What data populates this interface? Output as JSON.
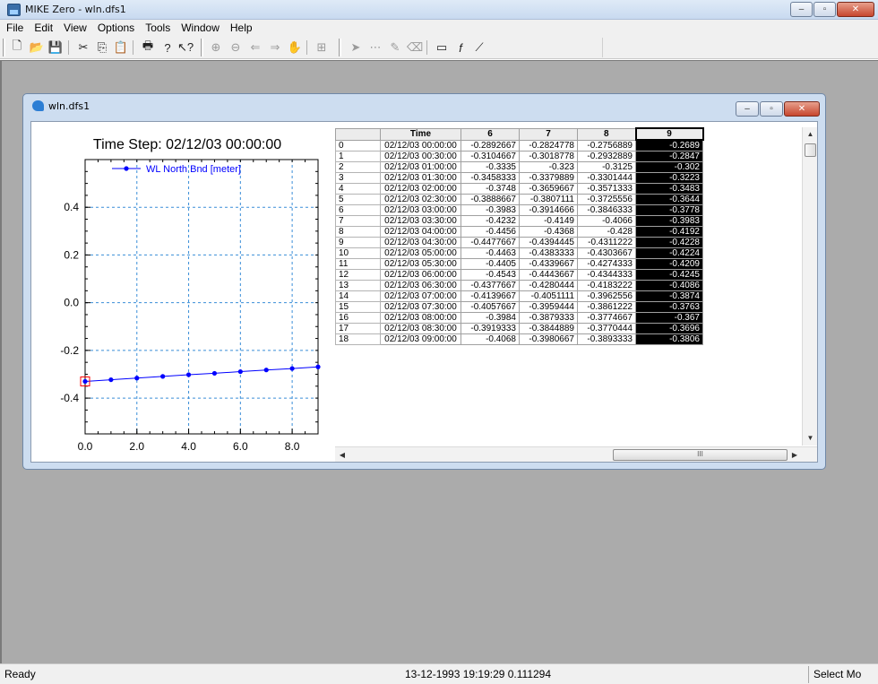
{
  "window": {
    "title": "MIKE Zero - wln.dfs1",
    "minimize": "–",
    "maximize": "▫",
    "close": "✕"
  },
  "menu": [
    "File",
    "Edit",
    "View",
    "Options",
    "Tools",
    "Window",
    "Help"
  ],
  "toolbar": {
    "icons": [
      "new-file-icon",
      "open-folder-icon",
      "save-icon",
      "cut-icon",
      "copy-icon",
      "paste-icon",
      "print-icon",
      "about-icon",
      "context-help-icon",
      "zoom-in-icon",
      "zoom-out-icon",
      "previous-view-icon",
      "next-view-icon",
      "pan-icon",
      "grid-icon",
      "select-pointer-icon",
      "edit-points-icon",
      "draw-icon",
      "erase-icon",
      "rectangle-icon",
      "function-icon",
      "line-icon"
    ]
  },
  "child": {
    "title": "wln.dfs1",
    "minimize": "–",
    "maximize": "▫",
    "close": "✕"
  },
  "chart_data": {
    "type": "line",
    "title": "Time Step: 02/12/03 00:00:00",
    "xlabel": "",
    "ylabel": "",
    "xlim": [
      0.0,
      9.0
    ],
    "ylim": [
      -0.55,
      0.6
    ],
    "xticks": [
      "0.0",
      "2.0",
      "4.0",
      "6.0",
      "8.0"
    ],
    "yticks": [
      "0.4",
      "0.2",
      "0.0",
      "-0.2",
      "-0.4"
    ],
    "xtick_values": [
      0,
      2,
      4,
      6,
      8
    ],
    "ytick_values": [
      0.4,
      0.2,
      0.0,
      -0.2,
      -0.4
    ],
    "grid": true,
    "legend": "top-left",
    "series": [
      {
        "name": "WL North Bnd [meter]",
        "color": "#0000ff",
        "x": [
          0,
          1,
          2,
          3,
          4,
          5,
          6,
          7,
          8,
          9
        ],
        "values": [
          -0.33,
          -0.323,
          -0.316,
          -0.309,
          -0.302,
          -0.296,
          -0.289,
          -0.282,
          -0.276,
          -0.269
        ]
      }
    ],
    "highlight_point_index": 0,
    "highlight_color": "#ff0000"
  },
  "grid": {
    "headers": [
      "",
      "Time",
      "6",
      "7",
      "8",
      "9"
    ],
    "rows": [
      [
        "0",
        "02/12/03 00:00:00",
        "-0.2892667",
        "-0.2824778",
        "-0.2756889",
        "-0.2689"
      ],
      [
        "1",
        "02/12/03 00:30:00",
        "-0.3104667",
        "-0.3018778",
        "-0.2932889",
        "-0.2847"
      ],
      [
        "2",
        "02/12/03 01:00:00",
        "-0.3335",
        "-0.323",
        "-0.3125",
        "-0.302"
      ],
      [
        "3",
        "02/12/03 01:30:00",
        "-0.3458333",
        "-0.3379889",
        "-0.3301444",
        "-0.3223"
      ],
      [
        "4",
        "02/12/03 02:00:00",
        "-0.3748",
        "-0.3659667",
        "-0.3571333",
        "-0.3483"
      ],
      [
        "5",
        "02/12/03 02:30:00",
        "-0.3888667",
        "-0.3807111",
        "-0.3725556",
        "-0.3644"
      ],
      [
        "6",
        "02/12/03 03:00:00",
        "-0.3983",
        "-0.3914666",
        "-0.3846333",
        "-0.3778"
      ],
      [
        "7",
        "02/12/03 03:30:00",
        "-0.4232",
        "-0.4149",
        "-0.4066",
        "-0.3983"
      ],
      [
        "8",
        "02/12/03 04:00:00",
        "-0.4456",
        "-0.4368",
        "-0.428",
        "-0.4192"
      ],
      [
        "9",
        "02/12/03 04:30:00",
        "-0.4477667",
        "-0.4394445",
        "-0.4311222",
        "-0.4228"
      ],
      [
        "10",
        "02/12/03 05:00:00",
        "-0.4463",
        "-0.4383333",
        "-0.4303667",
        "-0.4224"
      ],
      [
        "11",
        "02/12/03 05:30:00",
        "-0.4405",
        "-0.4339667",
        "-0.4274333",
        "-0.4209"
      ],
      [
        "12",
        "02/12/03 06:00:00",
        "-0.4543",
        "-0.4443667",
        "-0.4344333",
        "-0.4245"
      ],
      [
        "13",
        "02/12/03 06:30:00",
        "-0.4377667",
        "-0.4280444",
        "-0.4183222",
        "-0.4086"
      ],
      [
        "14",
        "02/12/03 07:00:00",
        "-0.4139667",
        "-0.4051111",
        "-0.3962556",
        "-0.3874"
      ],
      [
        "15",
        "02/12/03 07:30:00",
        "-0.4057667",
        "-0.3959444",
        "-0.3861222",
        "-0.3763"
      ],
      [
        "16",
        "02/12/03 08:00:00",
        "-0.3984",
        "-0.3879333",
        "-0.3774667",
        "-0.367"
      ],
      [
        "17",
        "02/12/03 08:30:00",
        "-0.3919333",
        "-0.3844889",
        "-0.3770444",
        "-0.3696"
      ],
      [
        "18",
        "02/12/03 09:00:00",
        "-0.4068",
        "-0.3980667",
        "-0.3893333",
        "-0.3806"
      ]
    ],
    "scroll_arrows": {
      "up": "▲",
      "down": "▼",
      "left": "◀",
      "right": "▶"
    },
    "hscroll_grip": "III"
  },
  "status": {
    "left": "Ready",
    "center": "13-12-1993 19:19:29 0.111294",
    "right": "Select Mo"
  }
}
